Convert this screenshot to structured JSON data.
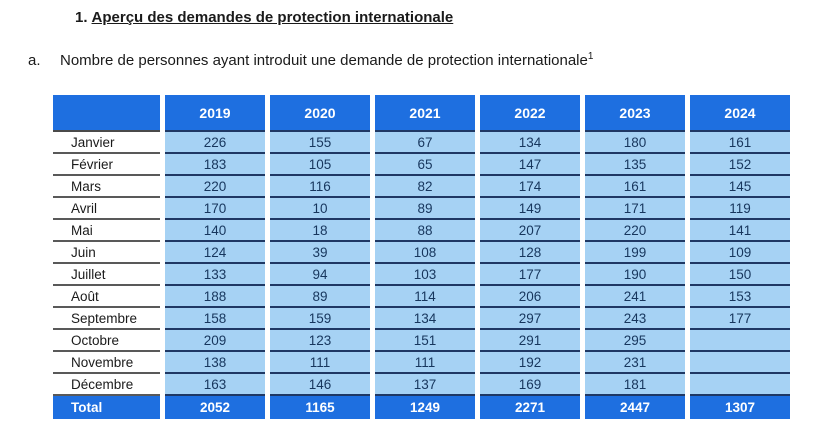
{
  "page": {
    "title_number": "1.",
    "title": "Aperçu des demandes de protection internationale",
    "subtitle_marker": "a.",
    "subtitle": "Nombre de personnes ayant introduit une demande de protection internationale",
    "subtitle_footnote": "1"
  },
  "colors": {
    "header_blue": "#1E6FE0",
    "cell_blue": "#A6D2F4",
    "line_navy": "#1F3864",
    "text_navy": "#17365D"
  },
  "table": {
    "corner_label": "",
    "columns": [
      "2019",
      "2020",
      "2021",
      "2022",
      "2023",
      "2024"
    ],
    "rows": [
      {
        "label": "Janvier",
        "values": [
          "226",
          "155",
          "67",
          "134",
          "180",
          "161"
        ]
      },
      {
        "label": "Février",
        "values": [
          "183",
          "105",
          "65",
          "147",
          "135",
          "152"
        ]
      },
      {
        "label": "Mars",
        "values": [
          "220",
          "116",
          "82",
          "174",
          "161",
          "145"
        ]
      },
      {
        "label": "Avril",
        "values": [
          "170",
          "10",
          "89",
          "149",
          "171",
          "119"
        ]
      },
      {
        "label": "Mai",
        "values": [
          "140",
          "18",
          "88",
          "207",
          "220",
          "141"
        ]
      },
      {
        "label": "Juin",
        "values": [
          "124",
          "39",
          "108",
          "128",
          "199",
          "109"
        ]
      },
      {
        "label": "Juillet",
        "values": [
          "133",
          "94",
          "103",
          "177",
          "190",
          "150"
        ]
      },
      {
        "label": "Août",
        "values": [
          "188",
          "89",
          "114",
          "206",
          "241",
          "153"
        ]
      },
      {
        "label": "Septembre",
        "values": [
          "158",
          "159",
          "134",
          "297",
          "243",
          "177"
        ]
      },
      {
        "label": "Octobre",
        "values": [
          "209",
          "123",
          "151",
          "291",
          "295",
          ""
        ]
      },
      {
        "label": "Novembre",
        "values": [
          "138",
          "111",
          "111",
          "192",
          "231",
          ""
        ]
      },
      {
        "label": "Décembre",
        "values": [
          "163",
          "146",
          "137",
          "169",
          "181",
          ""
        ]
      }
    ],
    "total": {
      "label": "Total",
      "values": [
        "2052",
        "1165",
        "1249",
        "2271",
        "2447",
        "1307"
      ]
    }
  }
}
